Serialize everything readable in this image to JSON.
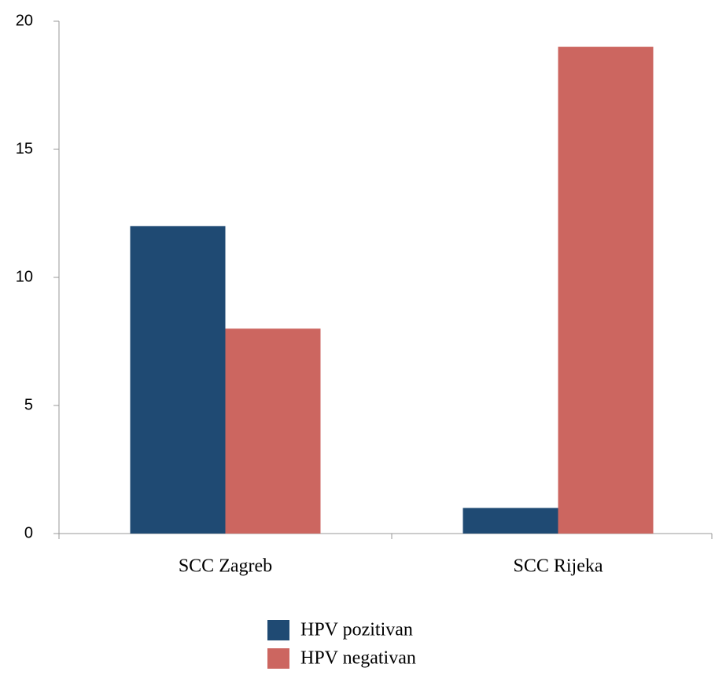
{
  "chart_data": {
    "type": "bar",
    "categories": [
      "SCC Zagreb",
      "SCC Rijeka"
    ],
    "series": [
      {
        "name": "HPV pozitivan",
        "color": "#1f4a73",
        "values": [
          12,
          1
        ]
      },
      {
        "name": "HPV negativan",
        "color": "#cc6660",
        "values": [
          8,
          19
        ]
      }
    ],
    "ylim": [
      0,
      20
    ],
    "yticks": [
      0,
      5,
      10,
      15,
      20
    ],
    "grid": false,
    "legend": "bottom"
  }
}
